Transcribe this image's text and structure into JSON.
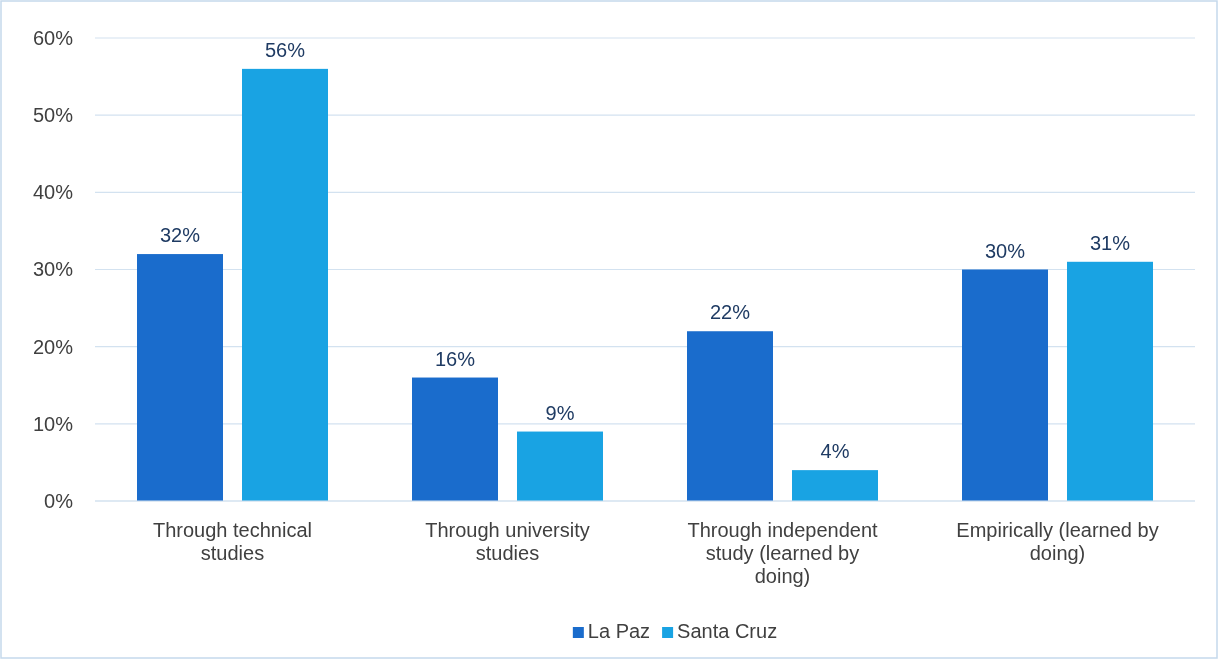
{
  "chart_data": {
    "type": "bar",
    "categories": [
      "Through technical studies",
      "Through university studies",
      "Through independent study (learned by doing)",
      "Empirically (learned by doing)"
    ],
    "series": [
      {
        "name": "La Paz",
        "color": "#1a6ccc",
        "values": [
          32,
          16,
          22,
          30
        ]
      },
      {
        "name": "Santa Cruz",
        "color": "#19a3e3",
        "values": [
          56,
          9,
          4,
          31
        ]
      }
    ],
    "ylim": [
      0,
      60
    ],
    "yticks": [
      {
        "value": 0,
        "label": "0%"
      },
      {
        "value": 10,
        "label": "10%"
      },
      {
        "value": 20,
        "label": "20%"
      },
      {
        "value": 30,
        "label": "30%"
      },
      {
        "value": 40,
        "label": "40%"
      },
      {
        "value": 50,
        "label": "50%"
      },
      {
        "value": 60,
        "label": "60%"
      }
    ],
    "grid": "y",
    "legend": "bottom",
    "value_labels": [
      [
        "32%",
        "16%",
        "22%",
        "30%"
      ],
      [
        "56%",
        "9%",
        "4%",
        "31%"
      ]
    ]
  }
}
